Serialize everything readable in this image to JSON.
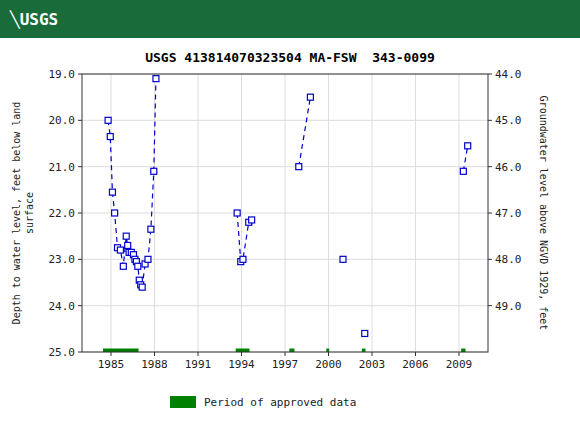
{
  "chart_data": {
    "type": "line",
    "title": "USGS 413814070323504 MA-FSW  343-0099",
    "annotations": [
      {
        "text": "╲USGS"
      }
    ],
    "y_label": "Depth to water level, feet below land\nsurface",
    "y2_label": "Groundwater level above NGVD 1929, feet",
    "xlim": [
      1983.0,
      2011.0
    ],
    "xticks": [
      1985,
      1988,
      1991,
      1994,
      1997,
      2000,
      2003,
      2006,
      2009
    ],
    "ylim": [
      25.0,
      19.0
    ],
    "yticks": [
      {
        "value": 19.0,
        "label": "19.0"
      },
      {
        "value": 20.0,
        "label": "20.0"
      },
      {
        "value": 21.0,
        "label": "21.0"
      },
      {
        "value": 22.0,
        "label": "22.0"
      },
      {
        "value": 23.0,
        "label": "23.0"
      },
      {
        "value": 24.0,
        "label": "24.0"
      },
      {
        "value": 25.0,
        "label": "25.0"
      }
    ],
    "y2lim": [
      50.0,
      44.0
    ],
    "y2ticks": [
      {
        "value": 44.0,
        "label": "44.0"
      },
      {
        "value": 45.0,
        "label": "45.0"
      },
      {
        "value": 46.0,
        "label": "46.0"
      },
      {
        "value": 47.0,
        "label": "47.0"
      },
      {
        "value": 48.0,
        "label": "48.0"
      },
      {
        "value": 49.0,
        "label": "49.0"
      }
    ],
    "grid": true,
    "legend": "bottom",
    "series": [
      {
        "color": "#0000cc",
        "marker": "square",
        "line_style": "dashed",
        "x": [
          1984.8,
          1984.95,
          1985.1,
          1985.25,
          1985.45,
          1985.65,
          1985.85,
          1986.05,
          1986.15,
          1986.25,
          1986.4,
          1986.55,
          1986.65,
          1986.75,
          1986.85,
          1986.95,
          1987.05,
          1987.15,
          1987.35,
          1987.55,
          1987.75,
          1987.95,
          1988.1
        ],
        "values": [
          20.0,
          20.35,
          21.55,
          22.0,
          22.75,
          22.8,
          23.15,
          22.5,
          22.7,
          22.85,
          22.85,
          22.9,
          23.0,
          23.05,
          23.15,
          23.45,
          23.55,
          23.6,
          23.1,
          23.0,
          22.35,
          21.1,
          19.1
        ]
      },
      {
        "color": "#0000cc",
        "marker": "square",
        "line_style": "dashed",
        "x": [
          1993.7,
          1993.95,
          1994.1,
          1994.5,
          1994.7
        ],
        "values": [
          22.0,
          23.05,
          23.0,
          22.2,
          22.15
        ]
      },
      {
        "color": "#0000cc",
        "marker": "square",
        "line_style": "dashed",
        "x": [
          1997.95,
          1998.75
        ],
        "values": [
          21.0,
          19.5
        ]
      },
      {
        "color": "#0000cc",
        "marker": "square",
        "line_style": "dashed",
        "x": [
          2001.0
        ],
        "values": [
          23.0
        ]
      },
      {
        "color": "#0000cc",
        "marker": "square",
        "line_style": "dashed",
        "x": [
          2002.5
        ],
        "values": [
          24.6
        ]
      },
      {
        "color": "#0000cc",
        "marker": "square",
        "line_style": "dashed",
        "x": [
          2009.3,
          2009.6
        ],
        "values": [
          21.1,
          20.55
        ]
      },
      {
        "name": "Period of approved data",
        "type": "range",
        "color": "#008000",
        "x_start": [
          1984.45,
          1993.6,
          1997.3,
          1999.85,
          2002.3,
          2009.15
        ],
        "x_end": [
          1986.9,
          1994.55,
          1997.65,
          2000.05,
          2002.55,
          2009.45
        ],
        "values": [
          25.0,
          25.0,
          25.0,
          25.0,
          25.0,
          25.0
        ]
      }
    ]
  }
}
